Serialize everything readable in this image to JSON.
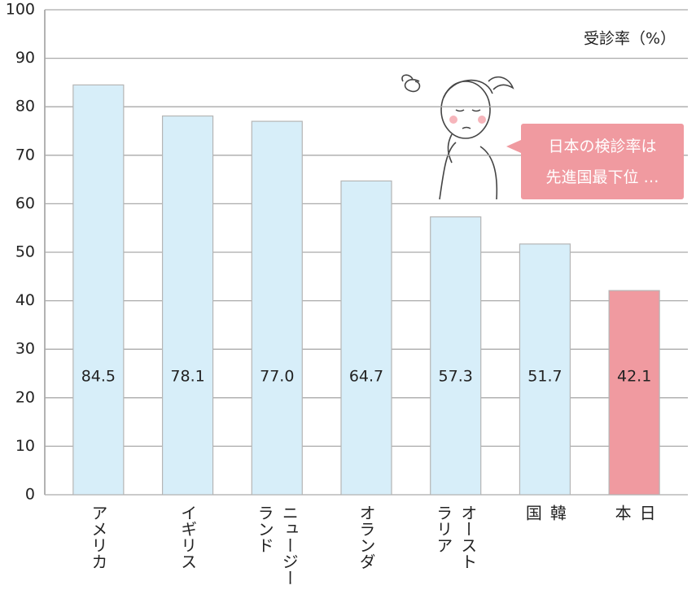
{
  "chart_data": {
    "type": "bar",
    "unit_label": "受診率（%）",
    "categories": [
      "アメリカ",
      "イギリス",
      "ニュージー\nランド",
      "オランダ",
      "オースト\nラリア",
      "韓\n国",
      "日\n本"
    ],
    "values": [
      84.5,
      78.1,
      77.0,
      64.7,
      57.3,
      51.7,
      42.1
    ],
    "value_labels": [
      "84.5",
      "78.1",
      "77.0",
      "64.7",
      "57.3",
      "51.7",
      "42.1"
    ],
    "colors": [
      "#d7eef9",
      "#d7eef9",
      "#d7eef9",
      "#d7eef9",
      "#d7eef9",
      "#d7eef9",
      "#f09aa0"
    ],
    "ylim": [
      0,
      100
    ],
    "yticks": [
      0,
      10,
      20,
      30,
      40,
      50,
      60,
      70,
      80,
      90,
      100
    ],
    "grid": true,
    "annotation": "日本の検診率は\n先進国最下位 …"
  }
}
